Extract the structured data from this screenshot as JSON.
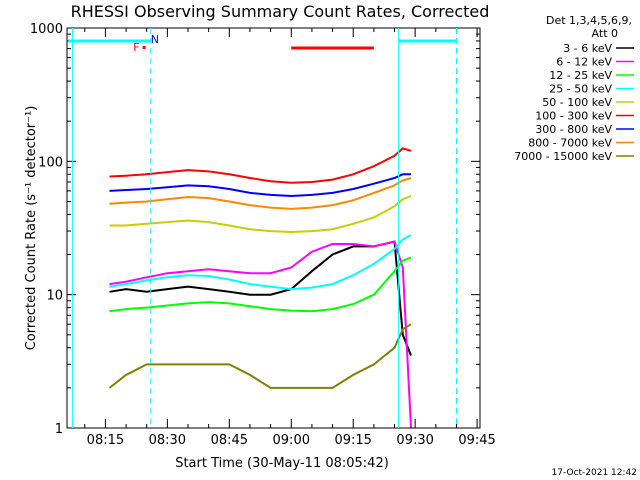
{
  "chart_data": {
    "type": "line",
    "title": "RHESSI Observing Summary Count Rates, Corrected",
    "xlabel": "Start Time (30-May-11 08:05:42)",
    "ylabel": "Corrected Count Rate (s⁻¹ detector⁻¹)",
    "y_scale": "log",
    "ylim": [
      1,
      1000
    ],
    "xlim": [
      "08:05:42",
      "09:45:42"
    ],
    "x_ticks": [
      "08:15",
      "08:30",
      "08:45",
      "09:00",
      "09:15",
      "09:30",
      "09:45"
    ],
    "y_ticks": [
      "1",
      "10",
      "100",
      "1000"
    ],
    "legend_header": [
      "Det 1,3,4,5,6,9,",
      "Att 0"
    ],
    "legend_position": "right",
    "grid": false,
    "series": [
      {
        "name": "3 - 6 keV",
        "color": "#000000",
        "x": [
          "08:16",
          "08:20",
          "08:25",
          "08:30",
          "08:35",
          "08:40",
          "08:45",
          "08:50",
          "08:55",
          "09:00",
          "09:05",
          "09:10",
          "09:15",
          "09:20",
          "09:25",
          "09:27",
          "09:29"
        ],
        "y": [
          10.5,
          11,
          10.5,
          11,
          11.5,
          11,
          10.5,
          10,
          10,
          11,
          15,
          20,
          23,
          23,
          25,
          5,
          3.5
        ]
      },
      {
        "name": "6 - 12 keV",
        "color": "#ff00ff",
        "x": [
          "08:16",
          "08:20",
          "08:25",
          "08:30",
          "08:35",
          "08:40",
          "08:45",
          "08:50",
          "08:55",
          "09:00",
          "09:05",
          "09:10",
          "09:15",
          "09:20",
          "09:25",
          "09:27",
          "09:29"
        ],
        "y": [
          12,
          12.5,
          13.5,
          14.5,
          15,
          15.5,
          15,
          14.5,
          14.5,
          16,
          21,
          24,
          24,
          23,
          25,
          16,
          1
        ]
      },
      {
        "name": "12 - 25 keV",
        "color": "#00ff00",
        "x": [
          "08:16",
          "08:20",
          "08:25",
          "08:30",
          "08:35",
          "08:40",
          "08:45",
          "08:50",
          "08:55",
          "09:00",
          "09:05",
          "09:10",
          "09:15",
          "09:20",
          "09:25",
          "09:27",
          "09:29"
        ],
        "y": [
          7.5,
          7.8,
          8,
          8.3,
          8.6,
          8.8,
          8.6,
          8.2,
          7.8,
          7.6,
          7.5,
          7.8,
          8.5,
          10,
          15,
          18,
          19
        ]
      },
      {
        "name": "25 - 50 keV",
        "color": "#00ffff",
        "x": [
          "08:16",
          "08:20",
          "08:25",
          "08:30",
          "08:35",
          "08:40",
          "08:45",
          "08:50",
          "08:55",
          "09:00",
          "09:05",
          "09:10",
          "09:15",
          "09:20",
          "09:25",
          "09:27",
          "09:29"
        ],
        "y": [
          11.5,
          12,
          12.8,
          13.5,
          14,
          13.8,
          13,
          12,
          11.5,
          11,
          11.3,
          12,
          14,
          17,
          22,
          26,
          28
        ]
      },
      {
        "name": "50 - 100 keV",
        "color": "#cccc00",
        "x": [
          "08:16",
          "08:20",
          "08:25",
          "08:30",
          "08:35",
          "08:40",
          "08:45",
          "08:50",
          "08:55",
          "09:00",
          "09:05",
          "09:10",
          "09:15",
          "09:20",
          "09:25",
          "09:27",
          "09:29"
        ],
        "y": [
          33,
          33,
          34,
          35,
          36,
          35,
          33,
          31,
          30,
          29.5,
          30,
          31,
          34,
          38,
          46,
          52,
          55
        ]
      },
      {
        "name": "100 - 300 keV",
        "color": "#ff0000",
        "x": [
          "08:16",
          "08:20",
          "08:25",
          "08:30",
          "08:35",
          "08:40",
          "08:45",
          "08:50",
          "08:55",
          "09:00",
          "09:05",
          "09:10",
          "09:15",
          "09:20",
          "09:25",
          "09:27",
          "09:29"
        ],
        "y": [
          77,
          78,
          80,
          83,
          86,
          84,
          80,
          75,
          71,
          69,
          70,
          73,
          80,
          92,
          110,
          125,
          120
        ]
      },
      {
        "name": "300 - 800 keV",
        "color": "#0000ff",
        "x": [
          "08:16",
          "08:20",
          "08:25",
          "08:30",
          "08:35",
          "08:40",
          "08:45",
          "08:50",
          "08:55",
          "09:00",
          "09:05",
          "09:10",
          "09:15",
          "09:20",
          "09:25",
          "09:27",
          "09:29"
        ],
        "y": [
          60,
          61,
          62,
          64,
          66,
          65,
          62,
          58,
          56,
          55,
          56,
          58,
          62,
          68,
          75,
          80,
          80
        ]
      },
      {
        "name": "800 - 7000 keV",
        "color": "#ff8800",
        "x": [
          "08:16",
          "08:20",
          "08:25",
          "08:30",
          "08:35",
          "08:40",
          "08:45",
          "08:50",
          "08:55",
          "09:00",
          "09:05",
          "09:10",
          "09:15",
          "09:20",
          "09:25",
          "09:27",
          "09:29"
        ],
        "y": [
          48,
          49,
          50,
          52,
          54,
          53,
          50,
          47,
          45,
          44,
          45,
          47,
          51,
          58,
          66,
          72,
          75
        ]
      },
      {
        "name": "7000 - 15000 keV",
        "color": "#808000",
        "x": [
          "08:16",
          "08:20",
          "08:25",
          "08:30",
          "08:35",
          "08:40",
          "08:45",
          "08:50",
          "08:55",
          "09:00",
          "09:05",
          "09:10",
          "09:15",
          "09:20",
          "09:25",
          "09:27",
          "09:29"
        ],
        "y": [
          2,
          2.5,
          3,
          3,
          3,
          3,
          3,
          2.5,
          2,
          2,
          2,
          2,
          2.5,
          3,
          4,
          5.5,
          6
        ]
      }
    ],
    "annotations": {
      "cyan_top_intervals": [
        [
          "08:06",
          "08:26"
        ],
        [
          "09:26",
          "09:40"
        ]
      ],
      "red_top_interval": [
        "09:00",
        "09:20"
      ],
      "vertical_markers": [
        "08:07",
        "08:26",
        "09:26",
        "09:40"
      ],
      "flags": {
        "F": "08:24",
        "N": "08:26"
      }
    }
  },
  "footer": {
    "timestamp": "17-Oct-2021 12:42"
  }
}
